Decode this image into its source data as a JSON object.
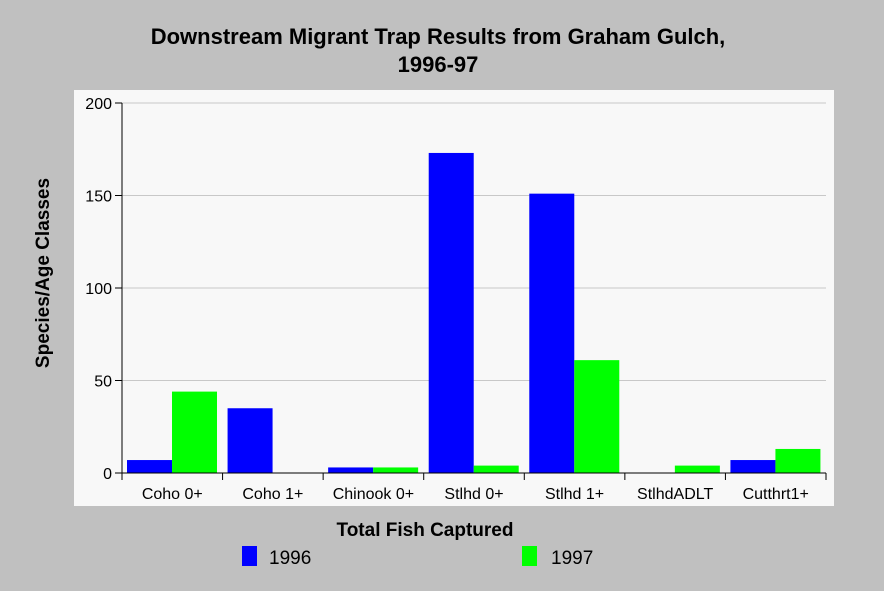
{
  "chart_data": {
    "type": "bar",
    "title_line1": "Downstream Migrant Trap Results from Graham Gulch,",
    "title_line2": "1996-97",
    "xlabel": "Total Fish Captured",
    "ylabel": "Species/Age Classes",
    "categories": [
      "Coho 0+",
      "Coho 1+",
      "Chinook 0+",
      "Stlhd 0+",
      "Stlhd 1+",
      "StlhdADLT",
      "Cutthrt1+"
    ],
    "series": [
      {
        "name": "1996",
        "color": "#0000ff",
        "values": [
          7,
          35,
          3,
          173,
          151,
          0,
          7
        ]
      },
      {
        "name": "1997",
        "color": "#00ff00",
        "values": [
          44,
          0,
          3,
          4,
          61,
          4,
          13
        ]
      }
    ],
    "ylim": [
      0,
      200
    ],
    "yticks": [
      "0",
      "50",
      "100",
      "150",
      "200"
    ],
    "grid": true,
    "legend": "bottom"
  }
}
